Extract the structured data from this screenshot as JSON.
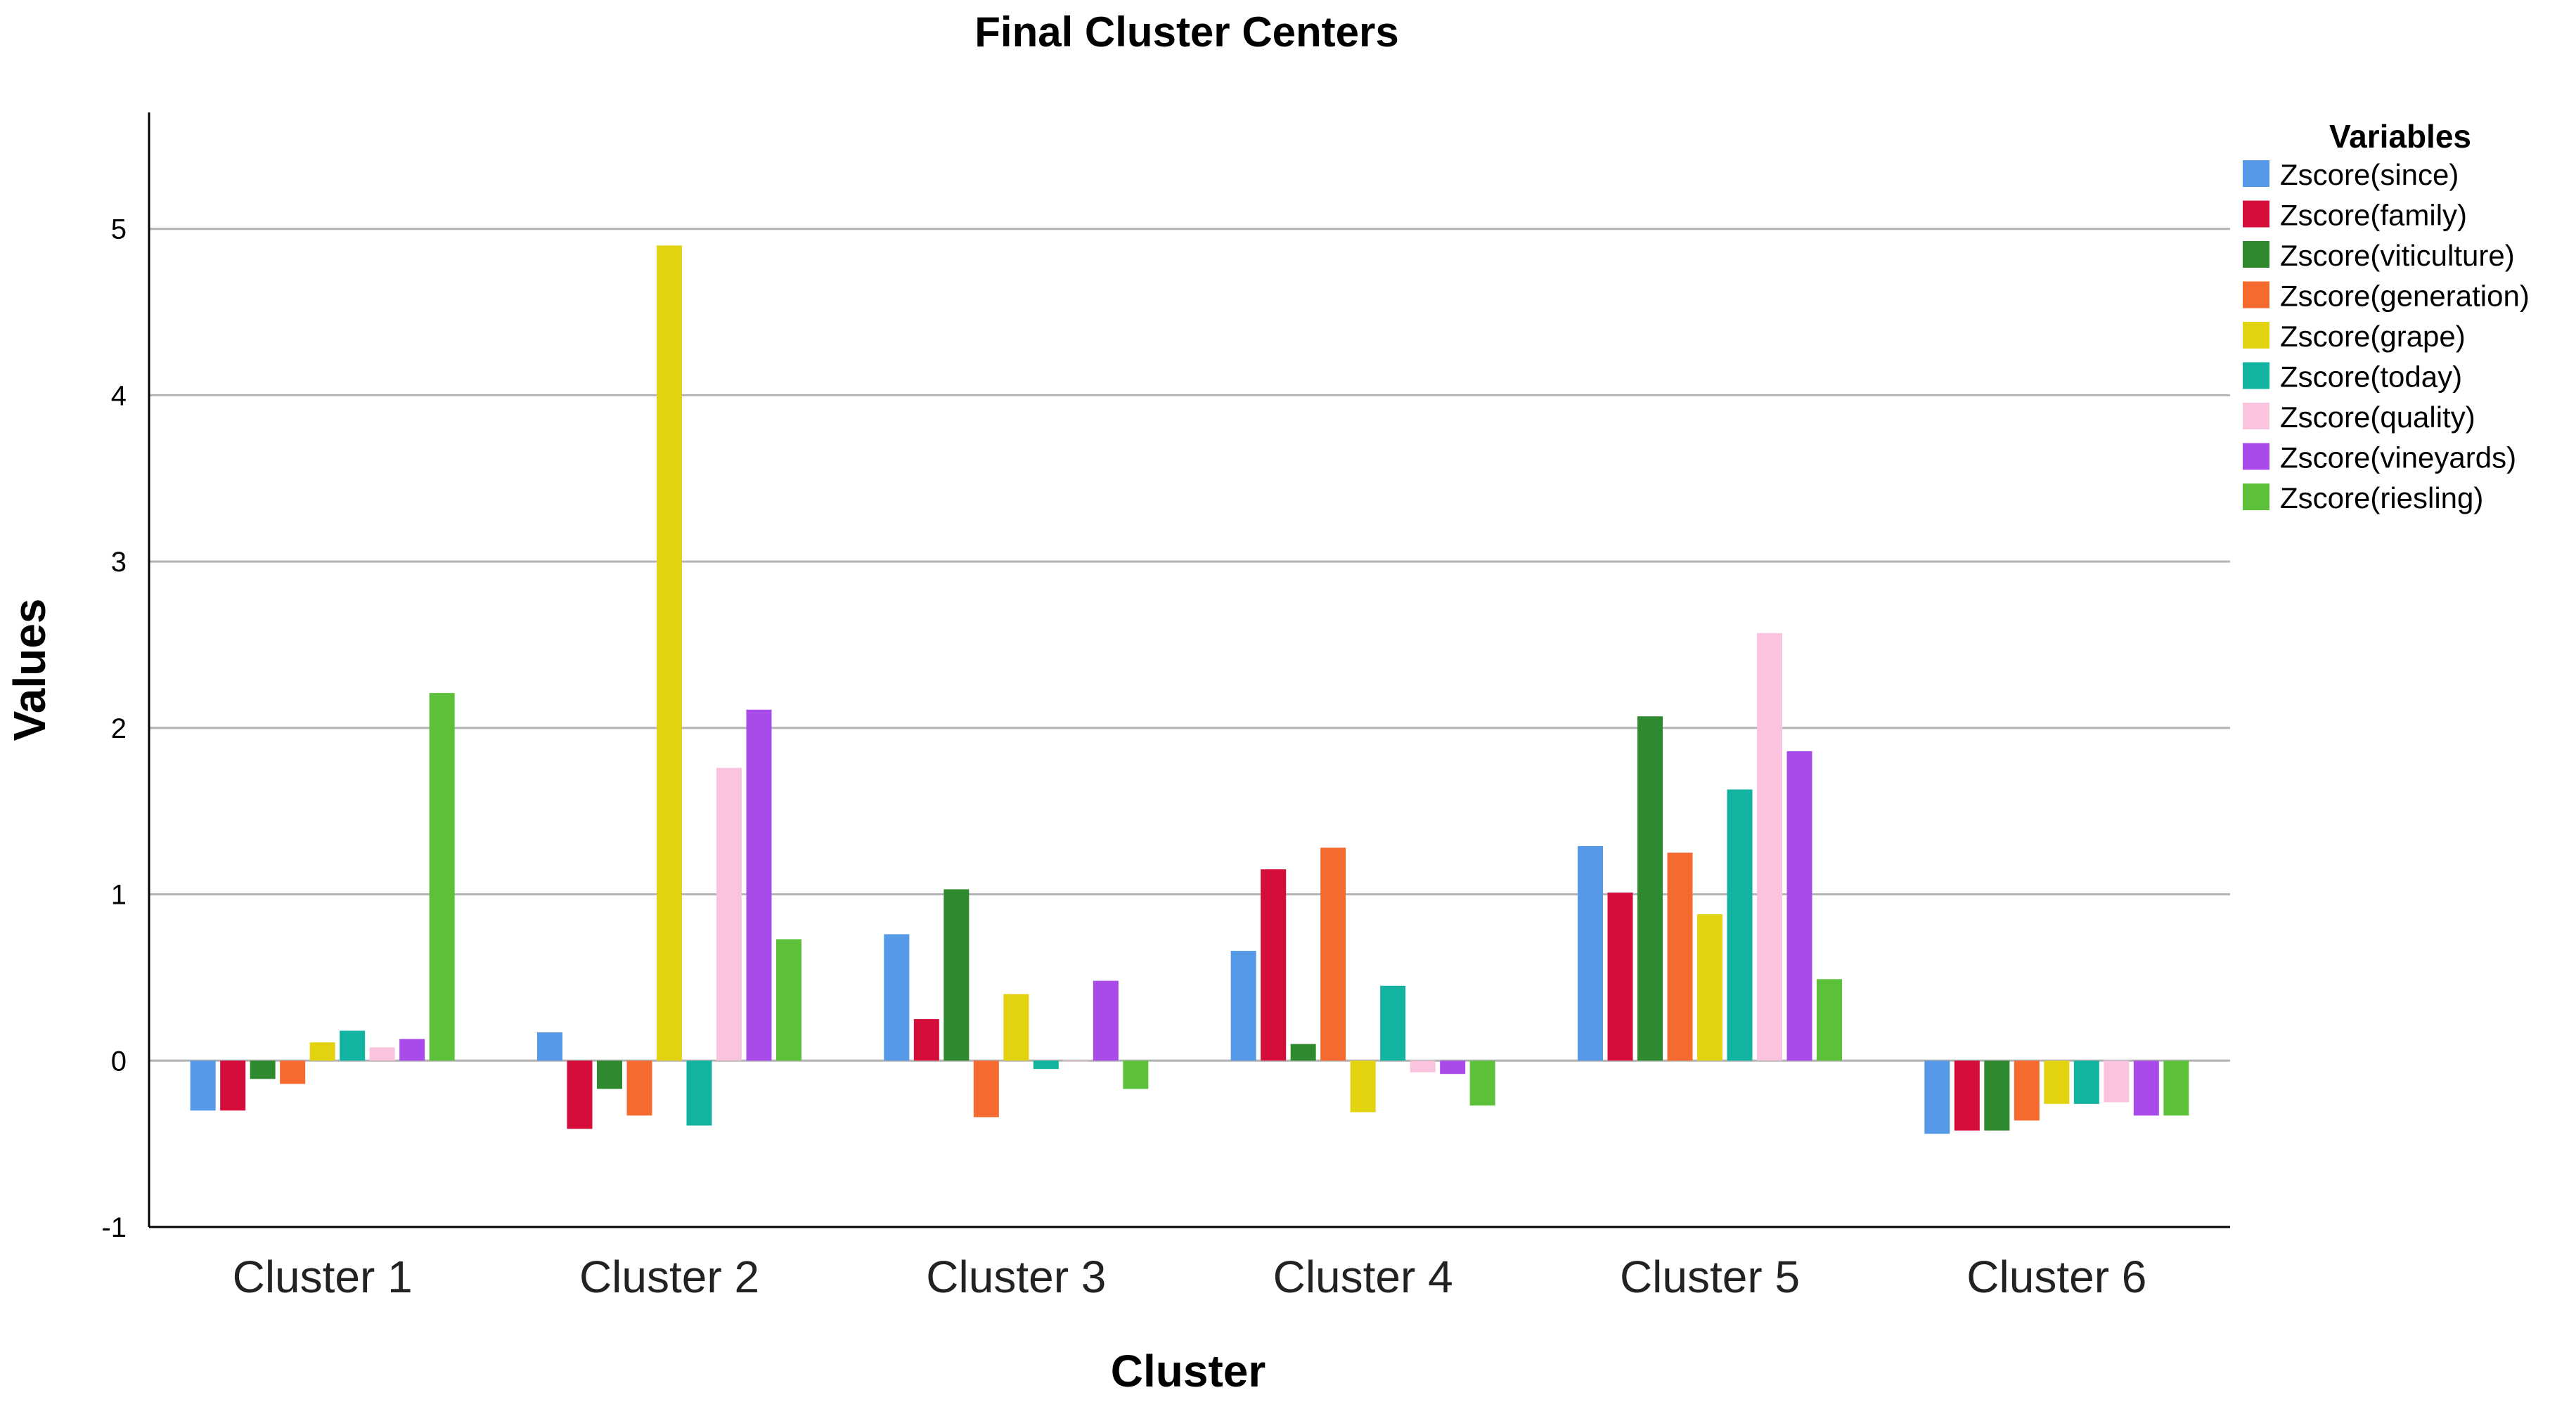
{
  "chart_data": {
    "type": "bar",
    "title": "Final Cluster Centers",
    "xlabel": "Cluster",
    "ylabel": "Values",
    "ylim": [
      -1,
      5.7
    ],
    "yticks": [
      -1,
      0,
      1,
      2,
      3,
      4,
      5
    ],
    "grid": true,
    "legend_title": "Variables",
    "legend_position": "top-right",
    "categories": [
      "Cluster 1",
      "Cluster 2",
      "Cluster 3",
      "Cluster 4",
      "Cluster 5",
      "Cluster 6"
    ],
    "series": [
      {
        "name": "Zscore(since)",
        "color": "#5699e6",
        "values": [
          -0.3,
          0.17,
          0.76,
          0.66,
          1.29,
          -0.44
        ]
      },
      {
        "name": "Zscore(family)",
        "color": "#d40d3b",
        "values": [
          -0.3,
          -0.41,
          0.25,
          1.15,
          1.01,
          -0.42
        ]
      },
      {
        "name": "Zscore(viticulture)",
        "color": "#2f8a2f",
        "values": [
          -0.11,
          -0.17,
          1.03,
          0.1,
          2.07,
          -0.42
        ]
      },
      {
        "name": "Zscore(generation)",
        "color": "#f56a2e",
        "values": [
          -0.14,
          -0.33,
          -0.34,
          1.28,
          1.25,
          -0.36
        ]
      },
      {
        "name": "Zscore(grape)",
        "color": "#e3d20f",
        "values": [
          0.11,
          4.9,
          0.4,
          -0.31,
          0.88,
          -0.26
        ]
      },
      {
        "name": "Zscore(today)",
        "color": "#12b3a0",
        "values": [
          0.18,
          -0.39,
          -0.05,
          0.45,
          1.63,
          -0.26
        ]
      },
      {
        "name": "Zscore(quality)",
        "color": "#fbc4de",
        "values": [
          0.08,
          1.76,
          0.0,
          -0.07,
          2.57,
          -0.25
        ]
      },
      {
        "name": "Zscore(vineyards)",
        "color": "#a84be8",
        "values": [
          0.13,
          2.11,
          0.48,
          -0.08,
          1.86,
          -0.33
        ]
      },
      {
        "name": "Zscore(riesling)",
        "color": "#5cc03a",
        "values": [
          2.21,
          0.73,
          -0.17,
          -0.27,
          0.49,
          -0.33
        ]
      }
    ]
  }
}
